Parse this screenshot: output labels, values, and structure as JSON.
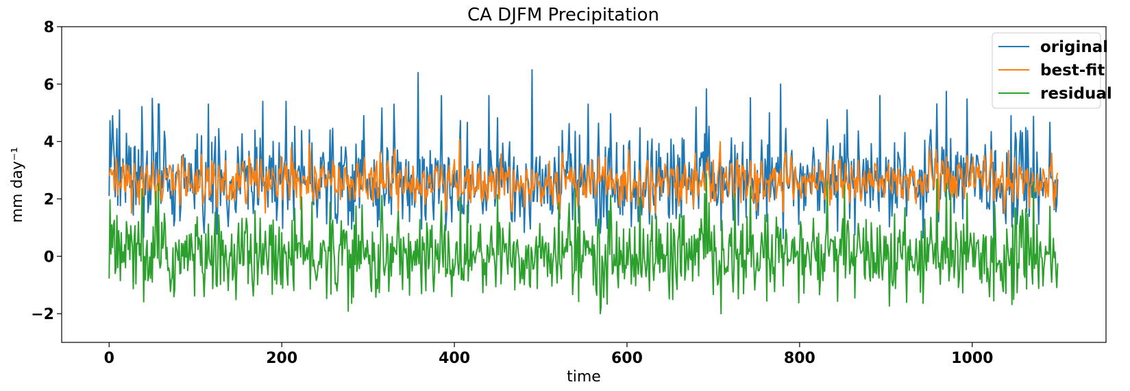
{
  "chart_data": {
    "type": "line",
    "title": "CA DJFM Precipitation",
    "xlabel": "time",
    "ylabel": "mm day⁻¹",
    "xlim": [
      -55,
      1155
    ],
    "ylim": [
      -3,
      8
    ],
    "xticks": [
      0,
      200,
      400,
      600,
      800,
      1000
    ],
    "xtick_labels": [
      "0",
      "200",
      "400",
      "600",
      "800",
      "1000"
    ],
    "yticks": [
      -2,
      0,
      2,
      4,
      6,
      8
    ],
    "ytick_labels": [
      "−2",
      "0",
      "2",
      "4",
      "6",
      "8"
    ],
    "grid": false,
    "legend_position": "top-right",
    "n_points": 1100,
    "series": [
      {
        "name": "original",
        "color": "#1f77b4",
        "mean": 2.5,
        "spread": 0.9,
        "approx_range": [
          0.5,
          6.5
        ],
        "peaks": [
          [
            4,
            4.9
          ],
          [
            12,
            5.1
          ],
          [
            50,
            5.5
          ],
          [
            58,
            5.3
          ],
          [
            115,
            5.3
          ],
          [
            178,
            5.4
          ],
          [
            205,
            5.4
          ],
          [
            295,
            4.9
          ],
          [
            330,
            5.3
          ],
          [
            358,
            6.4
          ],
          [
            385,
            5.6
          ],
          [
            440,
            5.6
          ],
          [
            490,
            6.5
          ],
          [
            555,
            5.3
          ],
          [
            680,
            5.2
          ],
          [
            765,
            5.0
          ],
          [
            778,
            6.0
          ],
          [
            855,
            5.1
          ],
          [
            893,
            5.6
          ],
          [
            1045,
            4.9
          ]
        ]
      },
      {
        "name": "best-fit",
        "color": "#ff7f0e",
        "mean": 2.6,
        "spread": 0.4,
        "approx_range": [
          1.5,
          4.1
        ]
      },
      {
        "name": "residual",
        "color": "#2ca02c",
        "mean": 0.0,
        "spread": 0.75,
        "approx_range": [
          -2.0,
          3.0
        ]
      }
    ]
  }
}
